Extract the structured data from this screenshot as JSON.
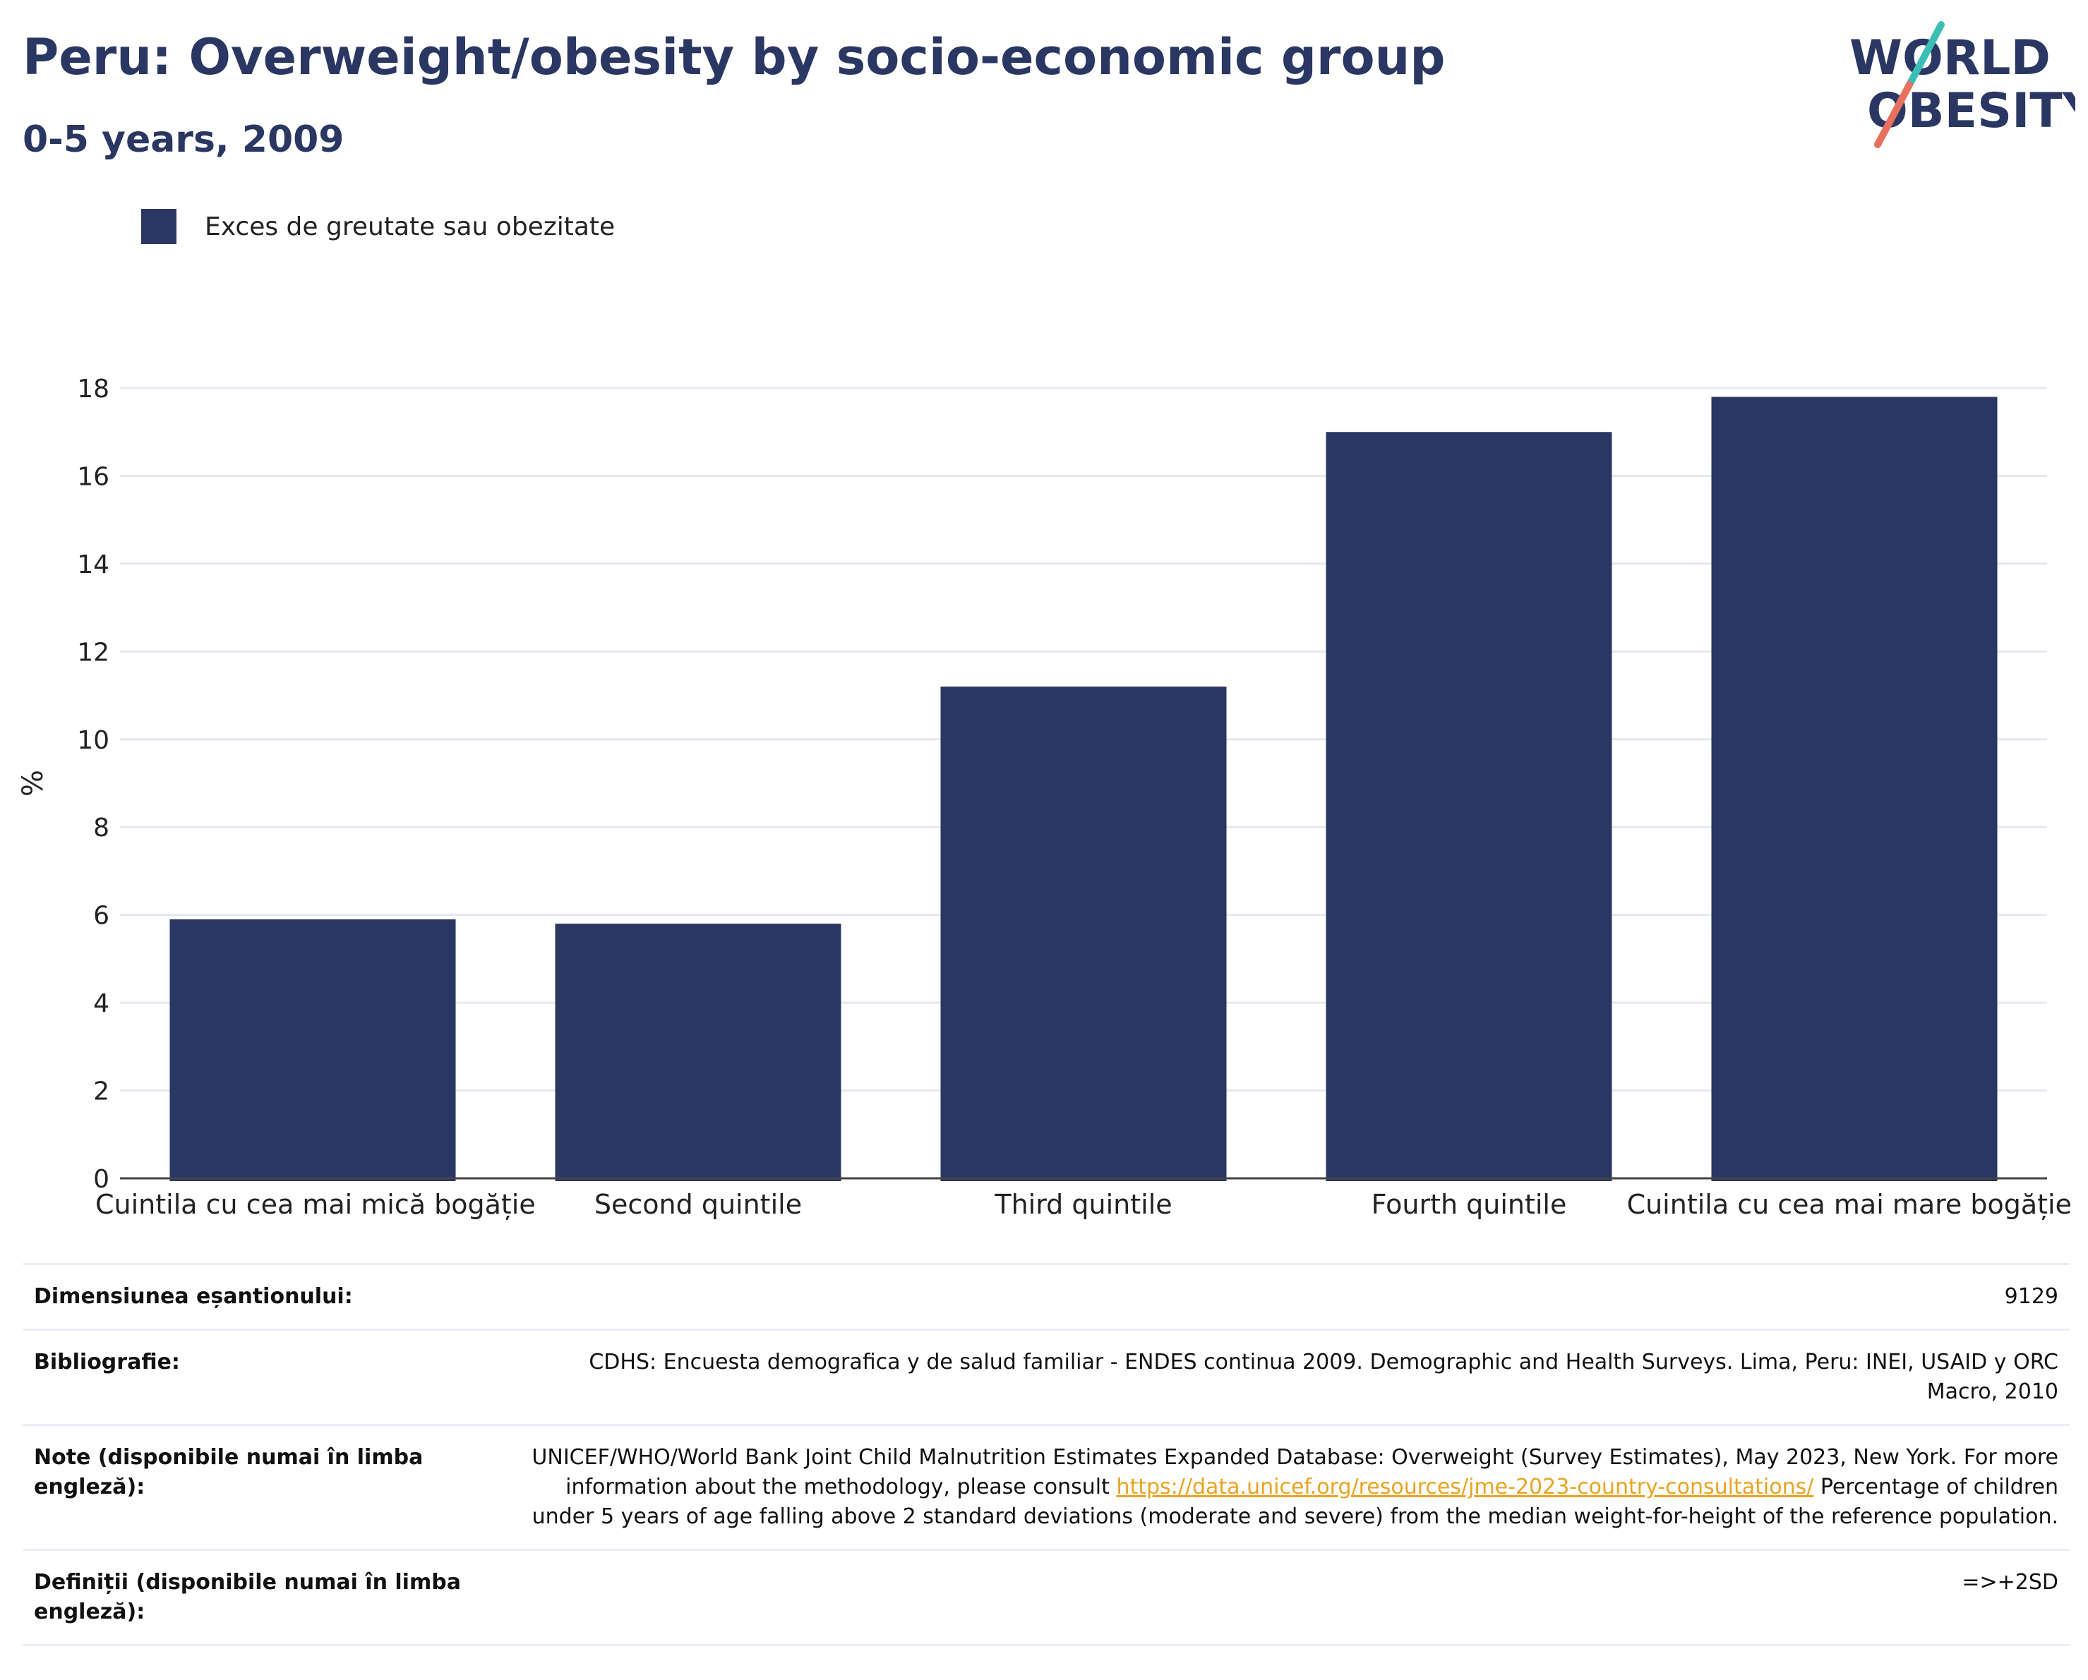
{
  "header": {
    "title": "Peru: Overweight/obesity by socio-economic group",
    "subtitle": "0-5 years, 2009",
    "logo_line1": "WORLD",
    "logo_line2": "OBESITY"
  },
  "legend": {
    "label": "Exces de greutate sau obezitate"
  },
  "colors": {
    "bar": "#2a3762",
    "grid": "#e6e8ef",
    "axis": "#444444",
    "logo_teal": "#3bbfb5",
    "logo_coral": "#e8705f",
    "link": "#e8a420"
  },
  "chart_data": {
    "type": "bar",
    "categories": [
      "Cuintila cu cea mai mică bogăție",
      "Second quintile",
      "Third quintile",
      "Fourth quintile",
      "Cuintila cu cea mai mare bogăție"
    ],
    "series": [
      {
        "name": "Exces de greutate sau obezitate",
        "values": [
          5.9,
          5.8,
          11.2,
          17.0,
          17.8
        ]
      }
    ],
    "ylabel": "%",
    "xlabel": "",
    "ylim": [
      0,
      18
    ],
    "yticks": [
      0,
      2,
      4,
      6,
      8,
      10,
      12,
      14,
      16,
      18
    ],
    "grid": true
  },
  "info": {
    "sample_size_label": "Dimensiunea eșantionului:",
    "sample_size_value": "9129",
    "bibliography_label": "Bibliografie:",
    "bibliography_value": "CDHS: Encuesta demografica y de salud familiar - ENDES continua 2009. Demographic and Health Surveys. Lima, Peru: INEI, USAID y ORC Macro, 2010",
    "notes_label": "Note (disponibile numai în limba engleză):",
    "notes_before_link": "UNICEF/WHO/World Bank Joint Child Malnutrition Estimates Expanded Database: Overweight (Survey Estimates), May 2023, New York. For more information about the methodology, please consult ",
    "notes_link": "https://data.unicef.org/resources/jme-2023-country-consultations/",
    "notes_after_link": " Percentage of children under 5 years of age falling above 2 standard deviations (moderate and severe) from the median weight-for-height of the reference population.",
    "definitions_label": "Definiții (disponibile numai în limba engleză):",
    "definitions_value": "=>+2SD"
  }
}
